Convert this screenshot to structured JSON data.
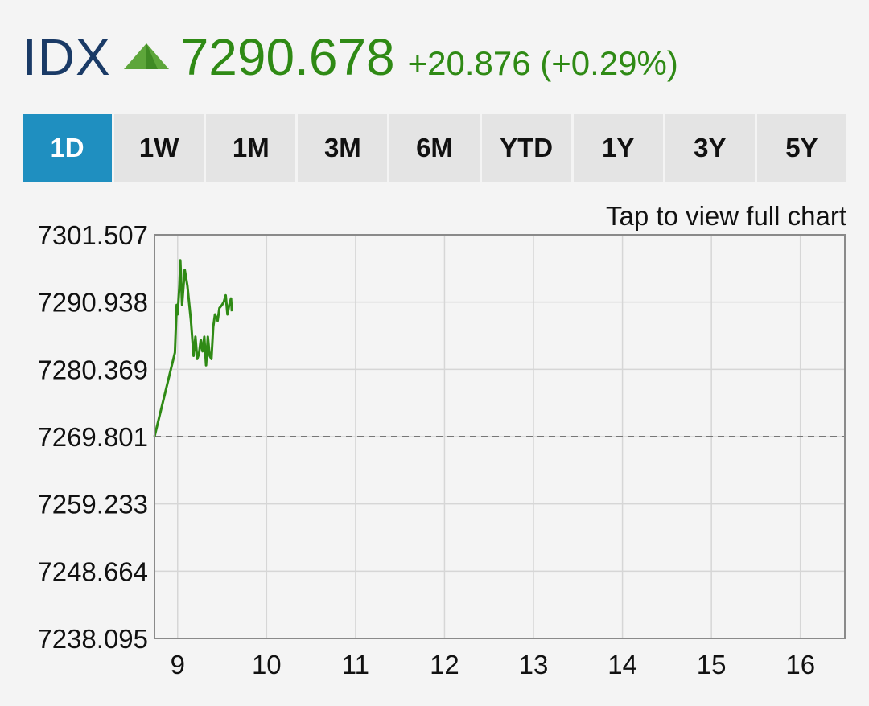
{
  "header": {
    "symbol": "IDX",
    "price": "7290.678",
    "change": "+20.876 (+0.29%)",
    "trend_icon": "triangle-up-icon",
    "colors": {
      "up": "#2f8a15",
      "symbol": "#1a3a66",
      "active_tab": "#1f8fc0"
    }
  },
  "ranges": [
    {
      "label": "1D",
      "active": true
    },
    {
      "label": "1W",
      "active": false
    },
    {
      "label": "1M",
      "active": false
    },
    {
      "label": "3M",
      "active": false
    },
    {
      "label": "6M",
      "active": false
    },
    {
      "label": "YTD",
      "active": false
    },
    {
      "label": "1Y",
      "active": false
    },
    {
      "label": "3Y",
      "active": false
    },
    {
      "label": "5Y",
      "active": false
    }
  ],
  "chart_link": "Tap to view full chart",
  "chart_data": {
    "type": "line",
    "title": "",
    "xlabel": "",
    "ylabel": "",
    "x_ticks": [
      "9",
      "10",
      "11",
      "12",
      "13",
      "14",
      "15",
      "16"
    ],
    "x_tick_values": [
      9,
      10,
      11,
      12,
      13,
      14,
      15,
      16
    ],
    "xlim": [
      8.74,
      16.5
    ],
    "y_ticks": [
      "7301.507",
      "7290.938",
      "7280.369",
      "7269.801",
      "7259.233",
      "7248.664",
      "7238.095"
    ],
    "ylim": [
      7238.095,
      7301.507
    ],
    "previous_close": 7269.801,
    "grid": true,
    "series": [
      {
        "color": "#2f8a15",
        "x": [
          8.74,
          8.97,
          8.99,
          9.0,
          9.02,
          9.03,
          9.05,
          9.08,
          9.11,
          9.15,
          9.18,
          9.2,
          9.22,
          9.24,
          9.26,
          9.28,
          9.3,
          9.32,
          9.34,
          9.36,
          9.38,
          9.4,
          9.42,
          9.45,
          9.47,
          9.5,
          9.52,
          9.54,
          9.56,
          9.58,
          9.6,
          9.61
        ],
        "y": [
          7269.8,
          7283.0,
          7290.5,
          7289.0,
          7293.5,
          7297.5,
          7290.5,
          7296.0,
          7293.5,
          7288.0,
          7282.5,
          7285.5,
          7282.0,
          7282.8,
          7285.0,
          7283.2,
          7285.5,
          7281.0,
          7285.5,
          7282.5,
          7282.0,
          7287.0,
          7289.0,
          7288.0,
          7290.0,
          7290.5,
          7291.0,
          7292.0,
          7289.0,
          7290.5,
          7291.5,
          7289.5
        ]
      }
    ]
  }
}
